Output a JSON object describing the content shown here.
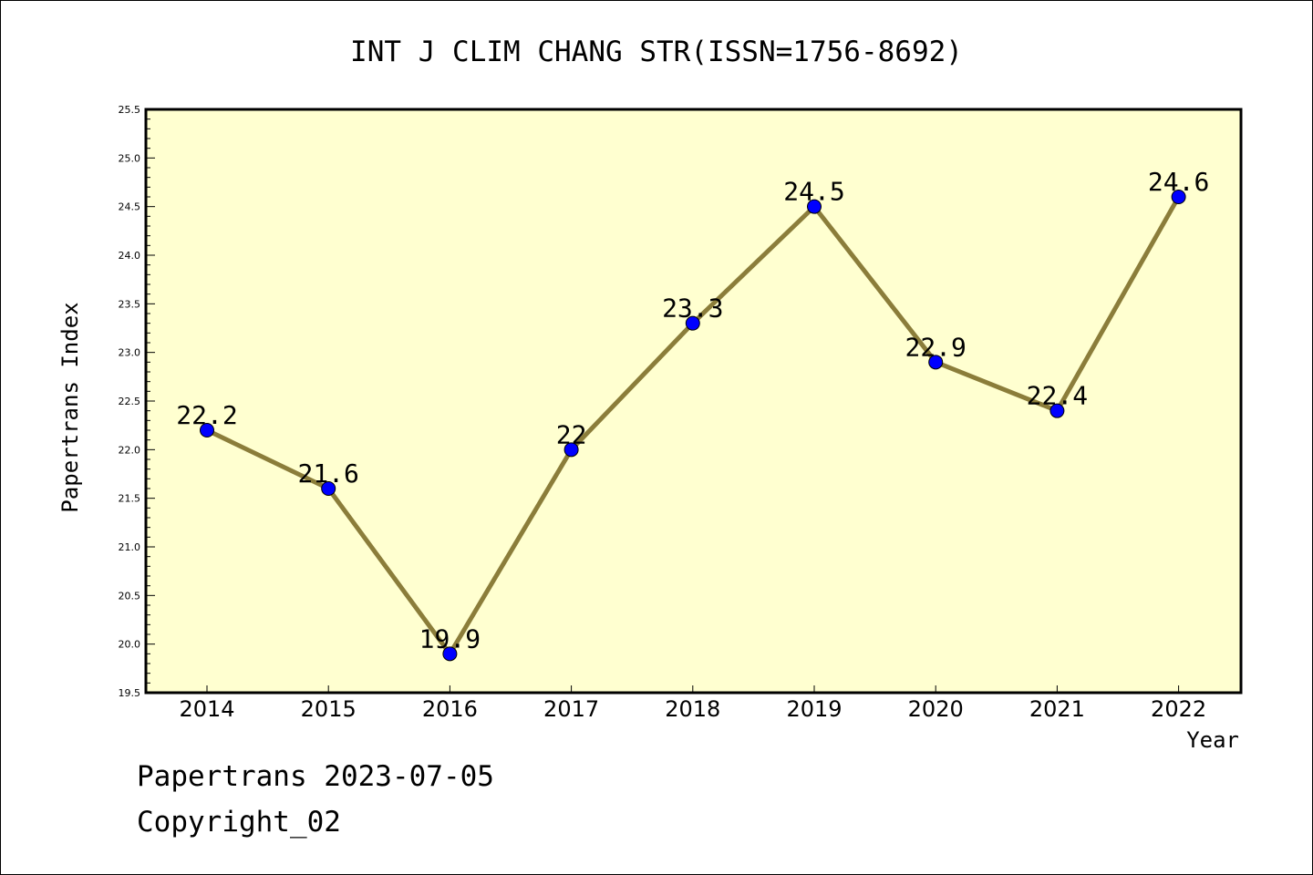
{
  "chart_data": {
    "type": "line",
    "title": "INT J CLIM CHANG STR(ISSN=1756-8692)",
    "xlabel": "Year",
    "ylabel": "Papertrans Index",
    "categories": [
      "2014",
      "2015",
      "2016",
      "2017",
      "2018",
      "2019",
      "2020",
      "2021",
      "2022"
    ],
    "series": [
      {
        "values": [
          22.2,
          21.6,
          19.9,
          22,
          23.3,
          24.5,
          22.9,
          22.4,
          24.6
        ],
        "data_labels": [
          "22.2",
          "21.6",
          "19.9",
          "22",
          "23.3",
          "24.5",
          "22.9",
          "22.4",
          "24.6"
        ]
      }
    ],
    "ylim": [
      19.5,
      25.5
    ],
    "yticks": [
      "19.5",
      "20.0",
      "20.5",
      "21.0",
      "21.5",
      "22.0",
      "22.5",
      "23.0",
      "23.5",
      "24.0",
      "24.5",
      "25.0",
      "25.5"
    ],
    "grid": false,
    "legend": "none",
    "colors": {
      "plot_background": "#ffffd0",
      "line": "#8b7d3a",
      "marker": "#0000ff"
    }
  },
  "footer": {
    "line1": "Papertrans 2023-07-05",
    "line2": "Copyright_02"
  }
}
